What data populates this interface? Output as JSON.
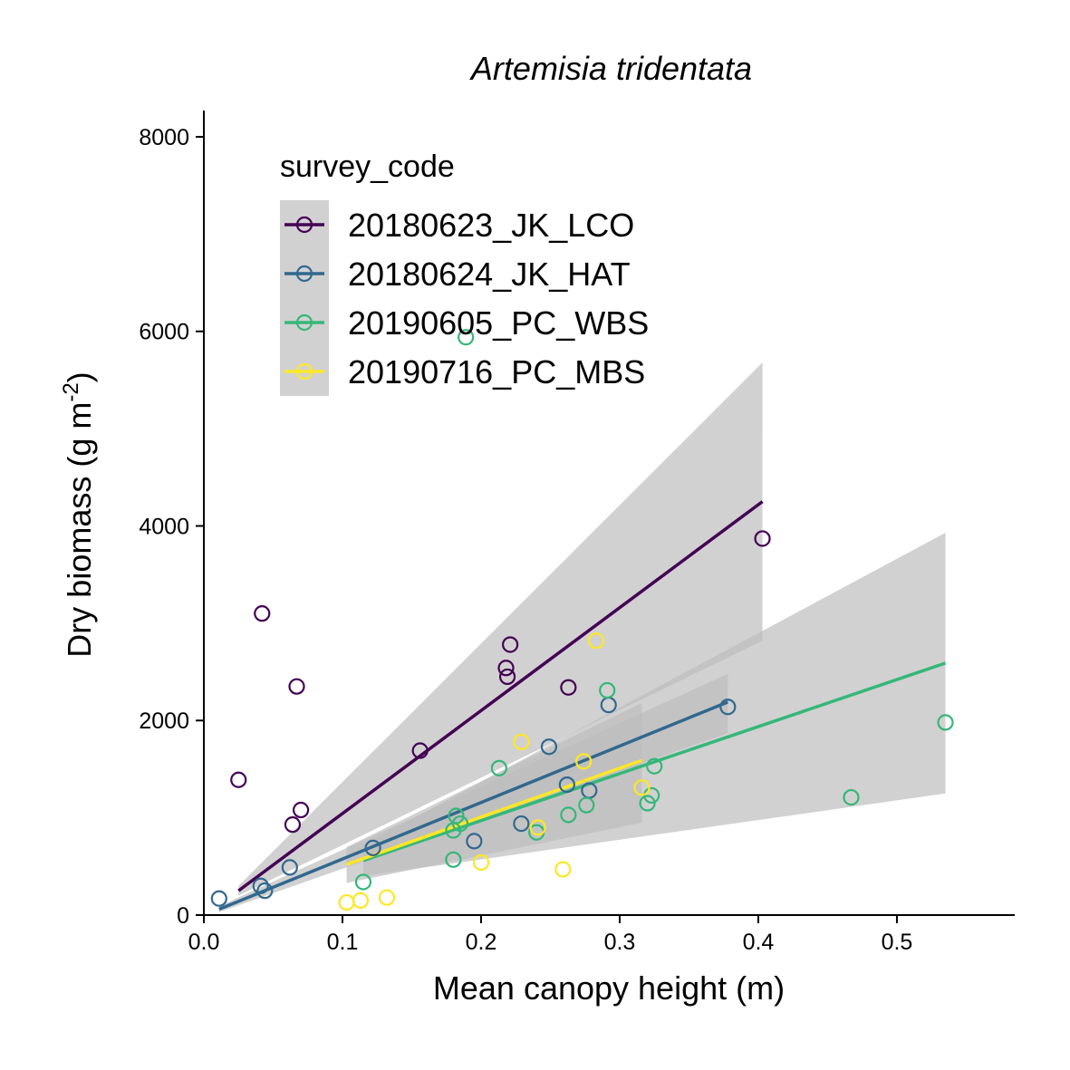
{
  "chart_data": {
    "type": "scatter",
    "title": "Artemisia tridentata",
    "xlabel": "Mean canopy height (m)",
    "ylabel_main": "Dry biomass (g m",
    "ylabel_sup": "-2",
    "ylabel_close": ")",
    "xlim": [
      0.0,
      0.585
    ],
    "ylim": [
      0,
      8270
    ],
    "x_ticks": [
      {
        "value": 0.0,
        "label": "0.0"
      },
      {
        "value": 0.1,
        "label": "0.1"
      },
      {
        "value": 0.2,
        "label": "0.2"
      },
      {
        "value": 0.3,
        "label": "0.3"
      },
      {
        "value": 0.4,
        "label": "0.4"
      },
      {
        "value": 0.5,
        "label": "0.5"
      }
    ],
    "y_ticks": [
      {
        "value": 0,
        "label": "0"
      },
      {
        "value": 2000,
        "label": "2000"
      },
      {
        "value": 4000,
        "label": "4000"
      },
      {
        "value": 6000,
        "label": "6000"
      },
      {
        "value": 8000,
        "label": "8000"
      }
    ],
    "grid": false,
    "legend": {
      "title": "survey_code",
      "placement": "top-left"
    },
    "ribbon_color": "#bdbdbd",
    "series": [
      {
        "name": "20180623_JK_LCO",
        "color": "#440154",
        "points": [
          {
            "x": 0.025,
            "y": 1390
          },
          {
            "x": 0.042,
            "y": 3100
          },
          {
            "x": 0.064,
            "y": 930
          },
          {
            "x": 0.067,
            "y": 2350
          },
          {
            "x": 0.07,
            "y": 1080
          },
          {
            "x": 0.156,
            "y": 1690
          },
          {
            "x": 0.218,
            "y": 2540
          },
          {
            "x": 0.219,
            "y": 2450
          },
          {
            "x": 0.221,
            "y": 2780
          },
          {
            "x": 0.263,
            "y": 2340
          },
          {
            "x": 0.403,
            "y": 3870
          }
        ],
        "fit": {
          "x": [
            0.025,
            0.403
          ],
          "y": [
            250,
            4250
          ]
        },
        "band": {
          "x": [
            0.025,
            0.403
          ],
          "lower": [
            200,
            2820
          ],
          "upper": [
            300,
            5680
          ]
        }
      },
      {
        "name": "20180624_JK_HAT",
        "color": "#31688e",
        "points": [
          {
            "x": 0.011,
            "y": 170
          },
          {
            "x": 0.041,
            "y": 300
          },
          {
            "x": 0.044,
            "y": 250
          },
          {
            "x": 0.062,
            "y": 490
          },
          {
            "x": 0.122,
            "y": 690
          },
          {
            "x": 0.195,
            "y": 760
          },
          {
            "x": 0.229,
            "y": 940
          },
          {
            "x": 0.249,
            "y": 1730
          },
          {
            "x": 0.262,
            "y": 1340
          },
          {
            "x": 0.278,
            "y": 1280
          },
          {
            "x": 0.292,
            "y": 2160
          },
          {
            "x": 0.378,
            "y": 2140
          }
        ],
        "fit": {
          "x": [
            0.011,
            0.378
          ],
          "y": [
            60,
            2190
          ]
        },
        "band": {
          "x": [
            0.011,
            0.378
          ],
          "lower": [
            30,
            1870
          ],
          "upper": [
            90,
            2480
          ]
        }
      },
      {
        "name": "20190605_PC_WBS",
        "color": "#35b779",
        "points": [
          {
            "x": 0.115,
            "y": 340
          },
          {
            "x": 0.18,
            "y": 570
          },
          {
            "x": 0.18,
            "y": 870
          },
          {
            "x": 0.182,
            "y": 1020
          },
          {
            "x": 0.185,
            "y": 940
          },
          {
            "x": 0.189,
            "y": 5940
          },
          {
            "x": 0.213,
            "y": 1510
          },
          {
            "x": 0.24,
            "y": 850
          },
          {
            "x": 0.263,
            "y": 1030
          },
          {
            "x": 0.276,
            "y": 1130
          },
          {
            "x": 0.291,
            "y": 2310
          },
          {
            "x": 0.32,
            "y": 1150
          },
          {
            "x": 0.323,
            "y": 1230
          },
          {
            "x": 0.325,
            "y": 1530
          },
          {
            "x": 0.467,
            "y": 1210
          },
          {
            "x": 0.535,
            "y": 1980
          }
        ],
        "fit": {
          "x": [
            0.115,
            0.535
          ],
          "y": [
            560,
            2590
          ]
        },
        "band": {
          "x": [
            0.115,
            0.535
          ],
          "lower": [
            400,
            1250
          ],
          "upper": [
            720,
            3930
          ]
        }
      },
      {
        "name": "20190716_PC_MBS",
        "color": "#fde725",
        "points": [
          {
            "x": 0.103,
            "y": 130
          },
          {
            "x": 0.113,
            "y": 150
          },
          {
            "x": 0.132,
            "y": 180
          },
          {
            "x": 0.2,
            "y": 540
          },
          {
            "x": 0.229,
            "y": 1780
          },
          {
            "x": 0.241,
            "y": 900
          },
          {
            "x": 0.259,
            "y": 470
          },
          {
            "x": 0.274,
            "y": 1580
          },
          {
            "x": 0.283,
            "y": 2820
          },
          {
            "x": 0.316,
            "y": 1310
          }
        ],
        "fit": {
          "x": [
            0.103,
            0.316
          ],
          "y": [
            520,
            1590
          ]
        },
        "band": {
          "x": [
            0.103,
            0.316
          ],
          "lower": [
            330,
            950
          ],
          "upper": [
            700,
            2180
          ]
        }
      }
    ]
  }
}
